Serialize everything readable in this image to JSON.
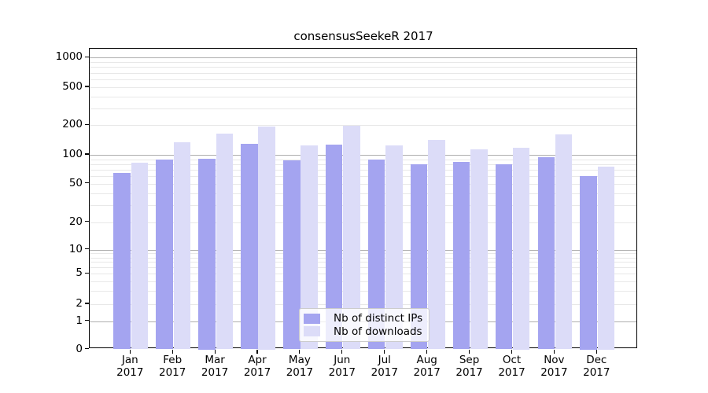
{
  "title": "consensusSeekeR 2017",
  "chart_data": {
    "type": "bar",
    "title": "consensusSeekeR 2017",
    "categories": [
      "Jan",
      "Feb",
      "Mar",
      "Apr",
      "May",
      "Jun",
      "Jul",
      "Aug",
      "Sep",
      "Oct",
      "Nov",
      "Dec"
    ],
    "year_label": "2017",
    "series": [
      {
        "name": "Nb of distinct IPs",
        "color": "#a4a4f0",
        "values": [
          65,
          90,
          91,
          130,
          88,
          128,
          90,
          80,
          85,
          80,
          94,
          60
        ]
      },
      {
        "name": "Nb of downloads",
        "color": "#dcdcf8",
        "values": [
          83,
          135,
          164,
          194,
          125,
          196,
          125,
          142,
          114,
          118,
          161,
          76
        ]
      }
    ],
    "xlabel": "",
    "ylabel": "",
    "y_ticks": [
      1000,
      500,
      200,
      100,
      50,
      20,
      10,
      5,
      2,
      1,
      0
    ],
    "y_scale": "symlog",
    "ylim": [
      0,
      1400
    ],
    "grid": "on",
    "legend_position": "lower center",
    "colors": {
      "major_gridline": "#aeaeae",
      "minor_gridline": "#e8e8e8",
      "axis": "#000000",
      "background": "#ffffff"
    }
  }
}
